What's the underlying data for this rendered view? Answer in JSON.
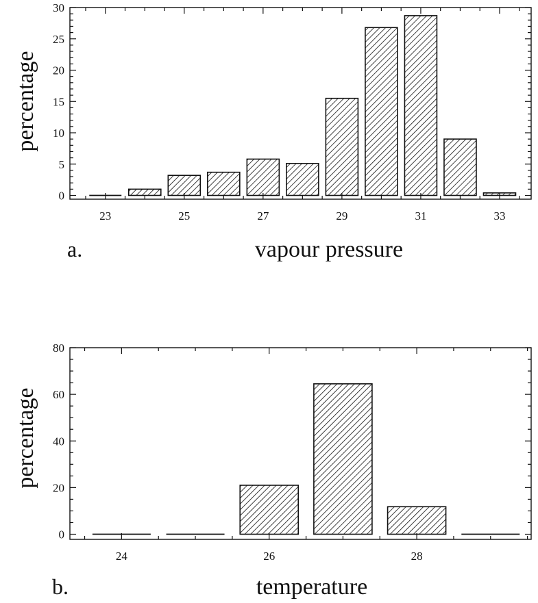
{
  "chart_data": [
    {
      "type": "bar",
      "panel_label": "a.",
      "xlabel": "vapour pressure",
      "ylabel": "percentage",
      "x": [
        23,
        24,
        25,
        26,
        27,
        28,
        29,
        30,
        31,
        32,
        33
      ],
      "values": [
        0.0,
        1.0,
        3.2,
        3.7,
        5.8,
        5.1,
        15.5,
        26.8,
        28.7,
        9.0,
        0.4
      ],
      "xlim": [
        22.1,
        33.8
      ],
      "ylim": [
        -0.6,
        30
      ],
      "xticks": [
        23,
        25,
        27,
        29,
        31,
        33
      ],
      "yticks": [
        0,
        5,
        10,
        15,
        20,
        25,
        30
      ],
      "bar_fill": "diagonal-hatch",
      "grid": false
    },
    {
      "type": "bar",
      "panel_label": "b.",
      "xlabel": "temperature",
      "ylabel": "percentage",
      "x": [
        24,
        25,
        26,
        27,
        28,
        29
      ],
      "values": [
        0.3,
        0.5,
        21,
        64.5,
        11.8,
        0.0
      ],
      "xlim": [
        23.3,
        29.55
      ],
      "ylim": [
        -2.2,
        80
      ],
      "xticks": [
        24,
        26,
        28
      ],
      "yticks": [
        0,
        20,
        40,
        60,
        80
      ],
      "bar_fill": "diagonal-hatch",
      "grid": false
    }
  ],
  "colors": {
    "ink": "#111111",
    "background": "#ffffff"
  }
}
